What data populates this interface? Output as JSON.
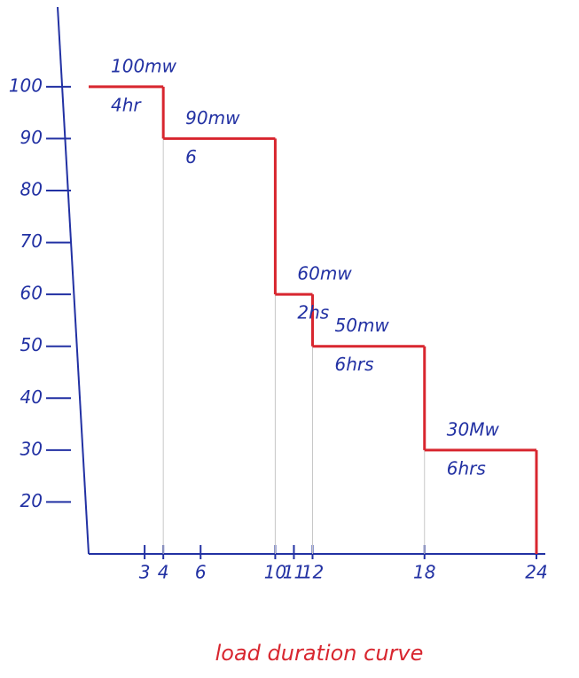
{
  "chart_data": {
    "type": "step",
    "title": "load duration curve",
    "series": [
      {
        "color": "#d8262f",
        "x": [
          0,
          4,
          10,
          12,
          18
        ],
        "values": [
          100,
          90,
          60,
          50,
          30
        ],
        "value_labels": [
          "100mw",
          "90mw",
          "60mw",
          "50mw",
          "30Mw"
        ],
        "duration_labels": [
          "4hr",
          "6",
          "2hs",
          "6hrs",
          "6hrs"
        ]
      }
    ],
    "xlim": [
      0,
      24
    ],
    "xticks": [
      3,
      4,
      6,
      10,
      11,
      12,
      18,
      24
    ],
    "ylim": [
      10,
      115
    ],
    "yticks": [
      20,
      30,
      40,
      50,
      60,
      70,
      80,
      90,
      100
    ],
    "axis_color": "#2231a3"
  }
}
